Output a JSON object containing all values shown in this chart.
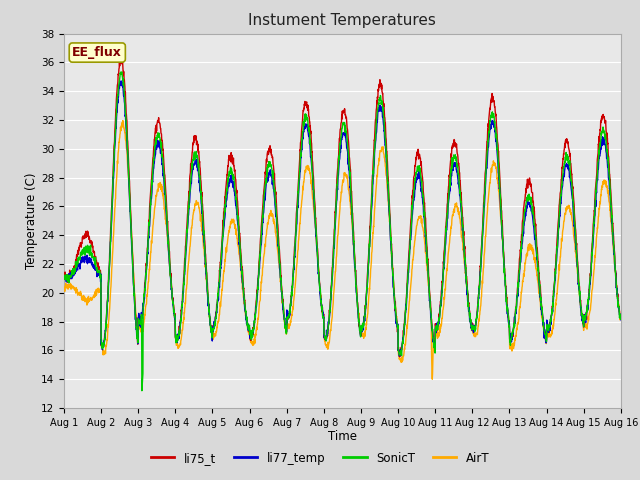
{
  "title": "Instument Temperatures",
  "xlabel": "Time",
  "ylabel": "Temperature (C)",
  "ylim": [
    12,
    38
  ],
  "yticks": [
    12,
    14,
    16,
    18,
    20,
    22,
    24,
    26,
    28,
    30,
    32,
    34,
    36,
    38
  ],
  "annotation": {
    "text": "EE_flux",
    "facecolor": "#ffffcc",
    "edgecolor": "#999900",
    "textcolor": "#800000"
  },
  "bg_color": "#d9d9d9",
  "plot_bg_color": "#e8e8e8",
  "grid_color": "#ffffff",
  "n_days": 15,
  "legend_colors": [
    "#cc0000",
    "#0000cc",
    "#00cc00",
    "#ffaa00"
  ],
  "legend_labels": [
    "li75_t",
    "li77_temp",
    "SonicT",
    "AirT"
  ]
}
